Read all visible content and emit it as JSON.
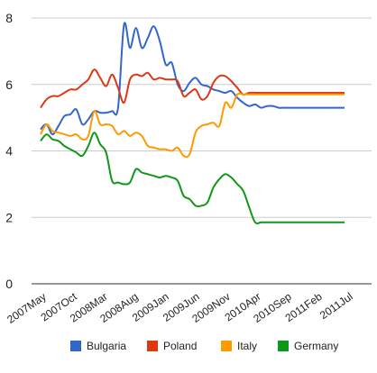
{
  "chart_data": {
    "type": "line",
    "title": "",
    "xlabel": "",
    "ylabel": "",
    "ylim": [
      0,
      8
    ],
    "yticks": [
      0,
      2,
      4,
      6,
      8
    ],
    "grid": "horizontal",
    "legend_position": "bottom",
    "x_tick_labels": [
      "2007May",
      "2007Oct",
      "2008Mar",
      "2008Aug",
      "2009Jan",
      "2009Jun",
      "2009Nov",
      "2010Apr",
      "2010Sep",
      "2011Feb",
      "2011Jul"
    ],
    "x": [
      "2007-05",
      "2007-06",
      "2007-07",
      "2007-08",
      "2007-09",
      "2007-10",
      "2007-11",
      "2007-12",
      "2008-01",
      "2008-02",
      "2008-03",
      "2008-04",
      "2008-05",
      "2008-06",
      "2008-07",
      "2008-08",
      "2008-09",
      "2008-10",
      "2008-11",
      "2008-12",
      "2009-01",
      "2009-02",
      "2009-03",
      "2009-04",
      "2009-05",
      "2009-06",
      "2009-07",
      "2009-08",
      "2009-09",
      "2009-10",
      "2009-11",
      "2009-12",
      "2010-01",
      "2010-02",
      "2010-03",
      "2010-04",
      "2010-05",
      "2010-06",
      "2010-07",
      "2010-08",
      "2010-09",
      "2010-10",
      "2010-11",
      "2010-12",
      "2011-01",
      "2011-02",
      "2011-03",
      "2011-04",
      "2011-05",
      "2011-06",
      "2011-07",
      "2011-08"
    ],
    "series": [
      {
        "name": "Bulgaria",
        "color": "#3366cc",
        "values": [
          4.65,
          4.8,
          4.5,
          4.75,
          5.05,
          5.1,
          5.25,
          4.8,
          4.95,
          5.2,
          5.15,
          5.15,
          5.2,
          5.3,
          7.8,
          7.1,
          7.7,
          7.1,
          7.4,
          7.75,
          7.3,
          6.6,
          6.65,
          6.0,
          5.8,
          6.05,
          6.2,
          6.0,
          5.95,
          5.85,
          5.8,
          5.75,
          5.8,
          5.6,
          5.45,
          5.35,
          5.4,
          5.3,
          5.35,
          5.35,
          5.3,
          5.3,
          5.3,
          5.3,
          5.3,
          5.3,
          5.3,
          5.3,
          5.3,
          5.3,
          5.3,
          5.3
        ]
      },
      {
        "name": "Poland",
        "color": "#dc3912",
        "values": [
          5.3,
          5.55,
          5.65,
          5.65,
          5.75,
          5.85,
          5.85,
          6.0,
          6.15,
          6.45,
          6.2,
          5.95,
          6.3,
          5.9,
          5.45,
          6.15,
          6.3,
          6.25,
          6.35,
          6.15,
          6.2,
          6.15,
          6.15,
          6.1,
          5.65,
          5.75,
          5.85,
          5.55,
          5.65,
          6.05,
          6.25,
          6.25,
          6.1,
          5.9,
          5.7,
          5.75,
          5.75,
          5.75,
          5.75,
          5.75,
          5.75,
          5.75,
          5.75,
          5.75,
          5.75,
          5.75,
          5.75,
          5.75,
          5.75,
          5.75,
          5.75,
          5.75
        ]
      },
      {
        "name": "Italy",
        "color": "#ff9900",
        "values": [
          4.5,
          4.8,
          4.6,
          4.55,
          4.5,
          4.45,
          4.5,
          4.35,
          4.45,
          5.2,
          4.8,
          4.8,
          4.75,
          4.5,
          4.6,
          4.45,
          4.55,
          4.45,
          4.15,
          4.1,
          4.05,
          4.05,
          4.0,
          4.1,
          3.85,
          3.9,
          4.55,
          4.75,
          4.8,
          4.85,
          4.75,
          5.45,
          5.3,
          5.7,
          5.7,
          5.7,
          5.7,
          5.7,
          5.7,
          5.7,
          5.7,
          5.7,
          5.7,
          5.7,
          5.7,
          5.7,
          5.7,
          5.7,
          5.7,
          5.7,
          5.7,
          5.7
        ]
      },
      {
        "name": "Germany",
        "color": "#109618",
        "values": [
          4.3,
          4.5,
          4.35,
          4.3,
          4.15,
          4.05,
          3.95,
          3.85,
          4.15,
          4.55,
          4.2,
          3.95,
          3.1,
          3.05,
          3.0,
          3.05,
          3.45,
          3.35,
          3.3,
          3.25,
          3.2,
          3.25,
          3.2,
          3.1,
          2.65,
          2.55,
          2.35,
          2.35,
          2.45,
          2.9,
          3.15,
          3.3,
          3.2,
          3.0,
          2.8,
          2.3,
          1.85,
          1.85,
          1.85,
          1.85,
          1.85,
          1.85,
          1.85,
          1.85,
          1.85,
          1.85,
          1.85,
          1.85,
          1.85,
          1.85,
          1.85,
          1.85
        ]
      }
    ]
  }
}
